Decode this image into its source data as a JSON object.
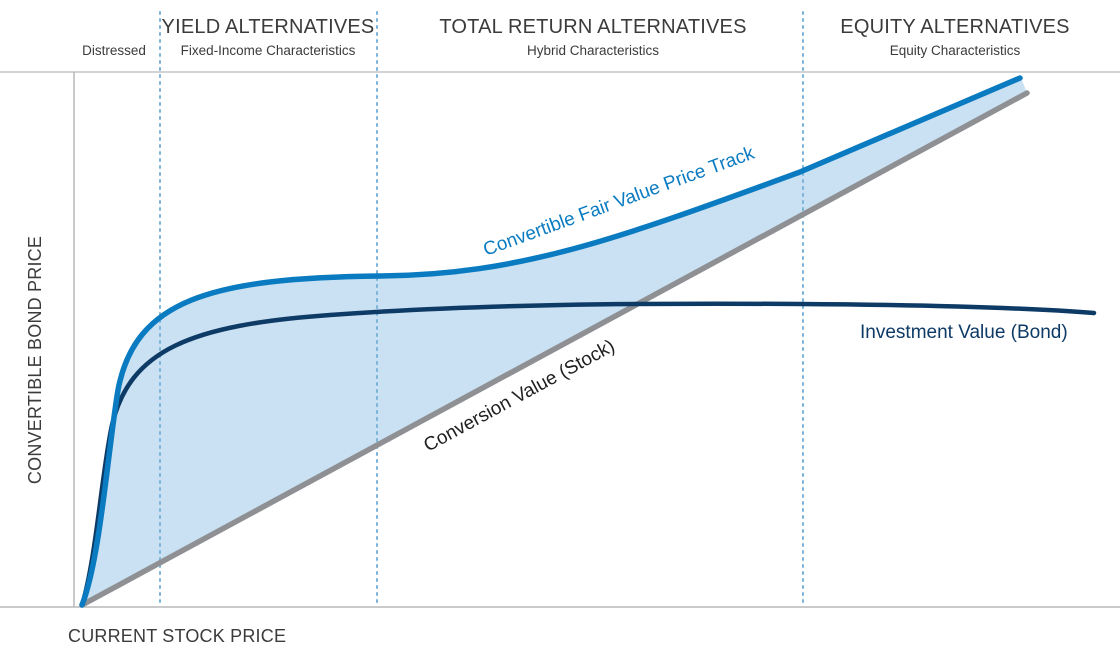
{
  "zones": [
    {
      "title": "",
      "subtitle": "Distressed"
    },
    {
      "title": "YIELD ALTERNATIVES",
      "subtitle": "Fixed-Income Characteristics"
    },
    {
      "title": "TOTAL RETURN ALTERNATIVES",
      "subtitle": "Hybrid Characteristics"
    },
    {
      "title": "EQUITY ALTERNATIVES",
      "subtitle": "Equity Characteristics"
    }
  ],
  "axes": {
    "y_label": "CONVERTIBLE BOND PRICE",
    "x_label": "CURRENT STOCK PRICE"
  },
  "curves": {
    "fair_value": {
      "label": "Convertible Fair Value Price Track",
      "color": "#0a7bc1"
    },
    "investment_value": {
      "label": "Investment Value (Bond)",
      "color": "#0e3a66"
    },
    "conversion_value": {
      "label": "Conversion Value (Stock)",
      "color": "#8e9094",
      "label_color": "#1f1f1f"
    }
  },
  "colors": {
    "fill": "#c9e1f2",
    "divider": "#7bb3d9",
    "axis": "#b9b9b9",
    "text": "#3b3b3b"
  }
}
